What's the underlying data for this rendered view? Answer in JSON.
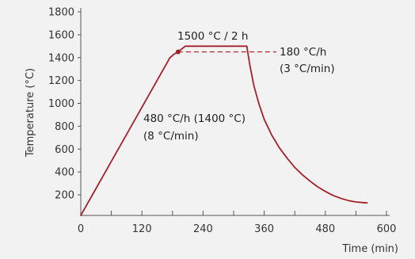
{
  "chart_data": {
    "type": "line",
    "title": "",
    "xlabel": "Time (min)",
    "ylabel": "Temperature (°C)",
    "xlim": [
      0,
      600
    ],
    "ylim": [
      100,
      1800
    ],
    "x_ticks": [
      0,
      120,
      240,
      360,
      480,
      600
    ],
    "y_ticks": [
      200,
      400,
      600,
      800,
      1000,
      1200,
      1400,
      1600,
      1800
    ],
    "grid": false,
    "series": [
      {
        "color": "#a3212a",
        "points": [
          [
            0,
            20
          ],
          [
            175,
            1400
          ],
          [
            183,
            1430
          ],
          [
            191,
            1450
          ],
          [
            205,
            1500
          ],
          [
            326,
            1500
          ],
          [
            328,
            1440
          ],
          [
            332,
            1330
          ],
          [
            340,
            1150
          ],
          [
            350,
            990
          ],
          [
            360,
            860
          ],
          [
            375,
            720
          ],
          [
            390,
            610
          ],
          [
            405,
            520
          ],
          [
            420,
            440
          ],
          [
            435,
            375
          ],
          [
            450,
            320
          ],
          [
            465,
            270
          ],
          [
            480,
            230
          ],
          [
            495,
            195
          ],
          [
            510,
            170
          ],
          [
            525,
            150
          ],
          [
            540,
            138
          ],
          [
            555,
            132
          ],
          [
            562,
            130
          ]
        ]
      }
    ],
    "annotations": {
      "dwell": "1500 °C / 2 h",
      "heating_rate": "480 °C/h (1400 °C)",
      "heating_rate_min": "(8 °C/min)",
      "cooling_rate": "180 °C/h",
      "cooling_rate_min": "(3 °C/min)"
    },
    "marker": {
      "x": 191,
      "y": 1450
    },
    "reference_line": {
      "x_start": 191,
      "x_end": 326,
      "y": 1450
    }
  }
}
